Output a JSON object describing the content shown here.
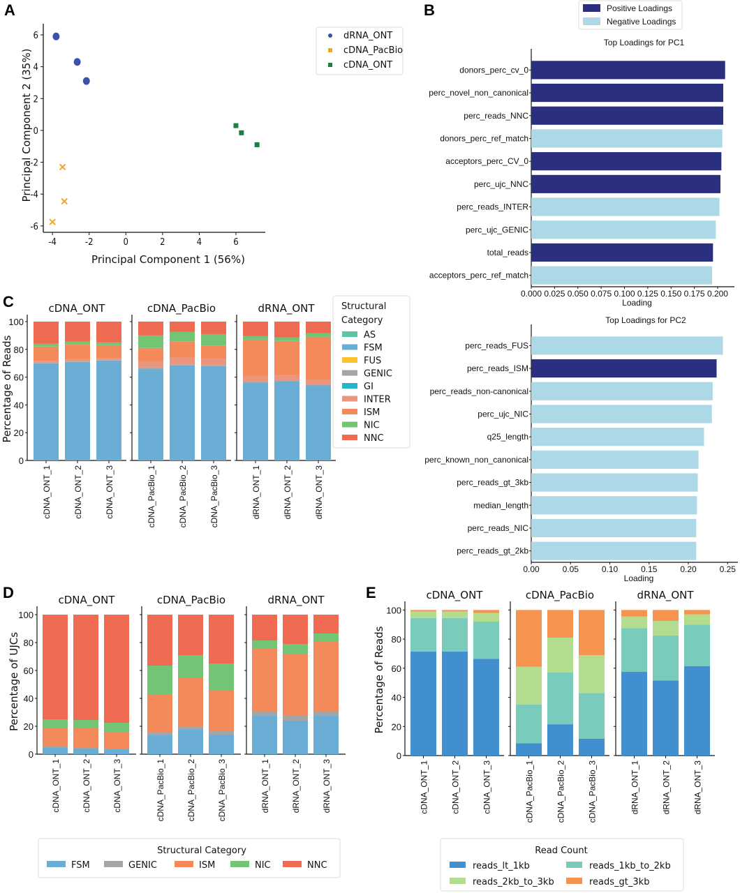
{
  "panels": {
    "A": "A",
    "B": "B",
    "C": "C",
    "D": "D",
    "E": "E"
  },
  "chart_data": [
    {
      "id": "A",
      "type": "scatter",
      "title": "",
      "xlabel": "Principal Component 1 (56%)",
      "ylabel": "Principal Component 2 (35%)",
      "xlim": [
        -4.5,
        7.6
      ],
      "ylim": [
        -6.4,
        6.7
      ],
      "xticks": [
        -4,
        -2,
        0,
        2,
        4,
        6
      ],
      "yticks": [
        -6,
        -4,
        -2,
        0,
        2,
        4,
        6
      ],
      "legend_position": "top-right-outside",
      "series": [
        {
          "name": "dRNA_ONT",
          "color": "#3a52a8",
          "marker": "circle",
          "points": [
            [
              -3.8,
              5.9
            ],
            [
              -2.65,
              4.3
            ],
            [
              -2.15,
              3.1
            ]
          ]
        },
        {
          "name": "cDNA_PacBio",
          "color": "#f3a51f",
          "marker": "x",
          "points": [
            [
              -3.45,
              -2.3
            ],
            [
              -3.35,
              -4.45
            ],
            [
              -4.0,
              -5.75
            ]
          ]
        },
        {
          "name": "cDNA_ONT",
          "color": "#1d8040",
          "marker": "square",
          "points": [
            [
              6.0,
              0.3
            ],
            [
              6.3,
              -0.15
            ],
            [
              7.15,
              -0.9
            ]
          ]
        }
      ]
    },
    {
      "id": "B1",
      "type": "bar",
      "orientation": "horizontal",
      "title": "Top Loadings for PC1",
      "xlabel": "Loading",
      "xlim": [
        0,
        0.212
      ],
      "xticks": [
        "0.000",
        "0.025",
        "0.050",
        "0.075",
        "0.100",
        "0.125",
        "0.150",
        "0.175",
        "0.200"
      ],
      "legend": [
        {
          "label": "Positive Loadings",
          "color": "#2a2f7f"
        },
        {
          "label": "Negative Loadings",
          "color": "#add8e6"
        }
      ],
      "legend_position": "top-center",
      "categories": [
        "donors_perc_cv_0",
        "perc_novel_non_canonical",
        "perc_reads_NNC",
        "donors_perc_ref_match",
        "acceptors_perc_CV_0",
        "perc_ujc_NNC",
        "perc_reads_INTER",
        "perc_ujc_GENIC",
        "total_reads",
        "acceptors_perc_ref_match"
      ],
      "values": [
        0.208,
        0.206,
        0.206,
        0.205,
        0.204,
        0.203,
        0.202,
        0.198,
        0.195,
        0.194
      ],
      "sign": [
        "positive",
        "positive",
        "positive",
        "negative",
        "positive",
        "positive",
        "negative",
        "negative",
        "positive",
        "negative"
      ]
    },
    {
      "id": "B2",
      "type": "bar",
      "orientation": "horizontal",
      "title": "Top Loadings for PC2",
      "xlabel": "Loading",
      "xlim": [
        0,
        0.256
      ],
      "xticks": [
        "0.00",
        "0.05",
        "0.10",
        "0.15",
        "0.20",
        "0.25"
      ],
      "categories": [
        "perc_reads_FUS",
        "perc_reads_ISM",
        "perc_reads_non-canonical",
        "perc_ujc_NIC",
        "q25_length",
        "perc_known_non_canonical",
        "perc_reads_gt_3kb",
        "median_length",
        "perc_reads_NIC",
        "perc_reads_gt_2kb"
      ],
      "values": [
        0.244,
        0.236,
        0.231,
        0.23,
        0.22,
        0.213,
        0.212,
        0.211,
        0.21,
        0.21
      ],
      "sign": [
        "negative",
        "positive",
        "negative",
        "negative",
        "negative",
        "negative",
        "negative",
        "negative",
        "negative",
        "negative"
      ]
    },
    {
      "id": "C",
      "type": "bar",
      "stacked": true,
      "ylabel": "Percentage of Reads",
      "ylim": [
        0,
        103
      ],
      "yticks": [
        0,
        20,
        40,
        60,
        80,
        100
      ],
      "legend_title": "Structural Category",
      "legend_position": "right",
      "legend": [
        {
          "label": "AS",
          "color": "#5cc6a2"
        },
        {
          "label": "FSM",
          "color": "#6aadd5"
        },
        {
          "label": "FUS",
          "color": "#fcc22d"
        },
        {
          "label": "GENIC",
          "color": "#a5a5a8"
        },
        {
          "label": "GI",
          "color": "#27b6c8"
        },
        {
          "label": "INTER",
          "color": "#e9957f"
        },
        {
          "label": "ISM",
          "color": "#f4895a"
        },
        {
          "label": "NIC",
          "color": "#74c476"
        },
        {
          "label": "NNC",
          "color": "#ee6a50"
        }
      ],
      "stack_order": [
        "FSM",
        "GENIC",
        "INTER",
        "ISM",
        "NIC",
        "NNC"
      ],
      "facets": [
        {
          "title": "cDNA_ONT",
          "categories": [
            "cDNA_ONT_1",
            "cDNA_ONT_2",
            "cDNA_ONT_3"
          ],
          "values": [
            [
              70,
              0.3,
              1.5,
              10.2,
              2,
              16
            ],
            [
              71,
              0.3,
              1.5,
              10.7,
              2,
              14.5
            ],
            [
              72,
              0.3,
              1.2,
              9.5,
              2,
              15
            ]
          ]
        },
        {
          "title": "cDNA_PacBio",
          "categories": [
            "cDNA_PacBio_1",
            "cDNA_PacBio_2",
            "cDNA_PacBio_3"
          ],
          "values": [
            [
              66,
              1,
              4,
              10,
              9,
              10
            ],
            [
              68.5,
              0.5,
              5,
              11.5,
              7,
              7.5
            ],
            [
              68,
              0.5,
              4.5,
              9.5,
              8.5,
              9
            ]
          ]
        },
        {
          "title": "dRNA_ONT",
          "categories": [
            "dRNA_ONT_1",
            "dRNA_ONT_2",
            "dRNA_ONT_3"
          ],
          "values": [
            [
              56,
              0.5,
              4,
              26.5,
              2.5,
              10.5
            ],
            [
              57,
              0.5,
              4,
              24.5,
              2.5,
              11.5
            ],
            [
              54,
              0.5,
              3.5,
              31,
              2.5,
              8.5
            ]
          ]
        }
      ]
    },
    {
      "id": "D",
      "type": "bar",
      "stacked": true,
      "ylabel": "Percentage of UJCs",
      "ylim": [
        0,
        104
      ],
      "yticks": [
        0,
        20,
        40,
        60,
        80,
        100
      ],
      "legend_title": "Structural Category",
      "legend_position": "bottom",
      "legend": [
        {
          "label": "FSM",
          "color": "#6aadd5"
        },
        {
          "label": "GENIC",
          "color": "#a5a5a8"
        },
        {
          "label": "ISM",
          "color": "#f4895a"
        },
        {
          "label": "NIC",
          "color": "#74c476"
        },
        {
          "label": "NNC",
          "color": "#ee6a50"
        }
      ],
      "stack_order": [
        "FSM",
        "GENIC",
        "ISM",
        "NIC",
        "NNC"
      ],
      "facets": [
        {
          "title": "cDNA_ONT",
          "categories": [
            "cDNA_ONT_1",
            "cDNA_ONT_2",
            "cDNA_ONT_3"
          ],
          "values": [
            [
              4.5,
              1.5,
              13,
              6,
              75
            ],
            [
              4,
              1,
              13.5,
              6,
              75.5
            ],
            [
              3.5,
              0.5,
              11.5,
              7,
              77.5
            ]
          ]
        },
        {
          "title": "cDNA_PacBio",
          "categories": [
            "cDNA_PacBio_1",
            "cDNA_PacBio_2",
            "cDNA_PacBio_3"
          ],
          "values": [
            [
              13.5,
              2.5,
              27,
              20.5,
              36.5
            ],
            [
              17.5,
              2.5,
              35,
              16,
              29
            ],
            [
              14,
              2.5,
              29.5,
              19,
              35
            ]
          ]
        },
        {
          "title": "dRNA_ONT",
          "categories": [
            "dRNA_ONT_1",
            "dRNA_ONT_2",
            "dRNA_ONT_3"
          ],
          "values": [
            [
              27.5,
              3,
              45.5,
              5.5,
              18.5
            ],
            [
              24,
              3.5,
              44.5,
              7,
              21
            ],
            [
              27.5,
              3,
              50.5,
              5.5,
              13.5
            ]
          ]
        }
      ]
    },
    {
      "id": "E",
      "type": "bar",
      "stacked": true,
      "ylabel": "Percentage of Reads",
      "ylim": [
        0,
        104
      ],
      "yticks": [
        0,
        20,
        40,
        60,
        80,
        100
      ],
      "legend_title": "Read Count",
      "legend_position": "bottom",
      "legend": [
        {
          "label": "reads_lt_1kb",
          "color": "#428fcf"
        },
        {
          "label": "reads_1kb_to_2kb",
          "color": "#79cbbb"
        },
        {
          "label": "reads_2kb_to_3kb",
          "color": "#b3dc8f"
        },
        {
          "label": "reads_gt_3kb",
          "color": "#f6944f"
        }
      ],
      "stack_order": [
        "reads_lt_1kb",
        "reads_1kb_to_2kb",
        "reads_2kb_to_3kb",
        "reads_gt_3kb"
      ],
      "facets": [
        {
          "title": "cDNA_ONT",
          "categories": [
            "cDNA_ONT_1",
            "cDNA_ONT_2",
            "cDNA_ONT_3"
          ],
          "values": [
            [
              71.5,
              23,
              4.5,
              1
            ],
            [
              71.5,
              23,
              4.5,
              1
            ],
            [
              66.5,
              25.5,
              6,
              2
            ]
          ]
        },
        {
          "title": "cDNA_PacBio",
          "categories": [
            "cDNA_PacBio_1",
            "cDNA_PacBio_2",
            "cDNA_PacBio_3"
          ],
          "values": [
            [
              8.5,
              26.5,
              26,
              39
            ],
            [
              21.5,
              35.5,
              24,
              19
            ],
            [
              11.5,
              31.5,
              26,
              31
            ]
          ]
        },
        {
          "title": "dRNA_ONT",
          "categories": [
            "dRNA_ONT_1",
            "dRNA_ONT_2",
            "dRNA_ONT_3"
          ],
          "values": [
            [
              57.5,
              30,
              8,
              4.5
            ],
            [
              51.5,
              31,
              10,
              7.5
            ],
            [
              61.5,
              28.5,
              7,
              3
            ]
          ]
        }
      ]
    }
  ]
}
